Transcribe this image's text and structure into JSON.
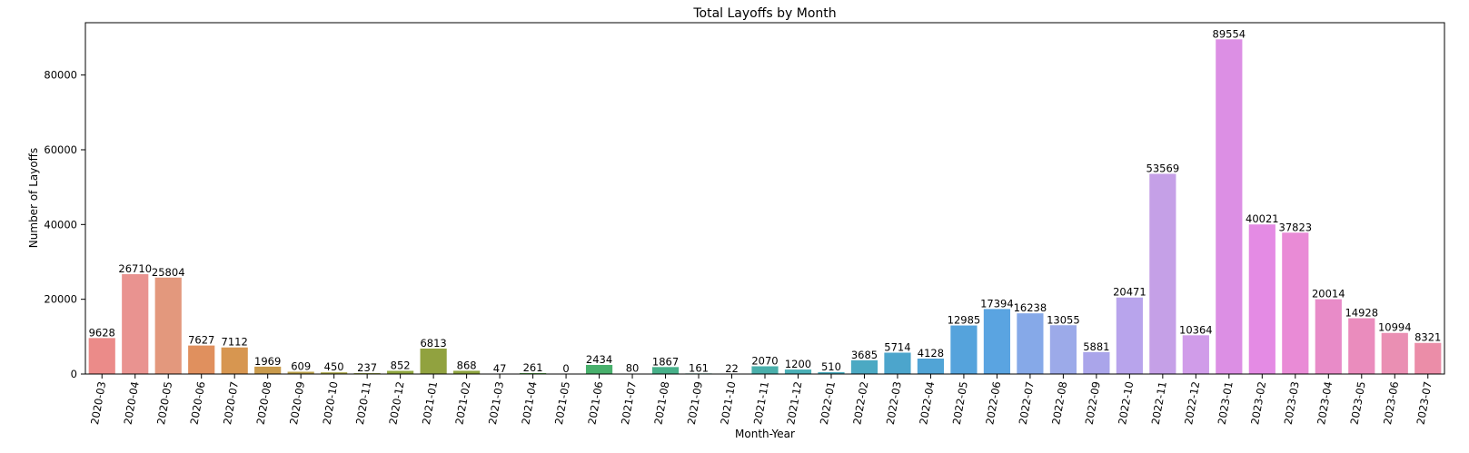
{
  "chart_data": {
    "type": "bar",
    "title": "Total Layoffs by Month",
    "xlabel": "Month-Year",
    "ylabel": "Number of Layoffs",
    "ylim": [
      0,
      94000
    ],
    "yticks": [
      0,
      20000,
      40000,
      60000,
      80000
    ],
    "grid": false,
    "legend": "none",
    "categories": [
      "2020-03",
      "2020-04",
      "2020-05",
      "2020-06",
      "2020-07",
      "2020-08",
      "2020-09",
      "2020-10",
      "2020-11",
      "2020-12",
      "2021-01",
      "2021-02",
      "2021-03",
      "2021-04",
      "2021-05",
      "2021-06",
      "2021-07",
      "2021-08",
      "2021-09",
      "2021-10",
      "2021-11",
      "2021-12",
      "2022-01",
      "2022-02",
      "2022-03",
      "2022-04",
      "2022-05",
      "2022-06",
      "2022-07",
      "2022-08",
      "2022-09",
      "2022-10",
      "2022-11",
      "2022-12",
      "2023-01",
      "2023-02",
      "2023-03",
      "2023-04",
      "2023-05",
      "2023-06",
      "2023-07"
    ],
    "values": [
      9628,
      26710,
      25804,
      7627,
      7112,
      1969,
      609,
      450,
      237,
      852,
      6813,
      868,
      47,
      261,
      0,
      2434,
      80,
      1867,
      161,
      22,
      2070,
      1200,
      510,
      3685,
      5714,
      4128,
      12985,
      17394,
      16238,
      13055,
      5881,
      20471,
      53569,
      10364,
      89554,
      40021,
      37823,
      20014,
      14928,
      10994,
      8321
    ],
    "colors": [
      "#eb8b89",
      "#e99390",
      "#e3987d",
      "#e0905e",
      "#d79650",
      "#c99a4c",
      "#b9a04a",
      "#a9a544",
      "#9aa540",
      "#8fa63f",
      "#91a23f",
      "#8ea43f",
      "#67ab44",
      "#57ae4c",
      "#4bb05c",
      "#48b06c",
      "#47b17a",
      "#47b089",
      "#49b096",
      "#4aafa1",
      "#4aafab",
      "#4ab0b7",
      "#4aabbe",
      "#4ba9c3",
      "#4ca5cc",
      "#51a4d6",
      "#55a3dc",
      "#5aa4e1",
      "#86a9e8",
      "#9caae9",
      "#aaa5ea",
      "#b8a4ec",
      "#c5a0e7",
      "#d09ce9",
      "#dc8fe4",
      "#e48be4",
      "#e98bd6",
      "#e88bc8",
      "#ea8cbd",
      "#ea8fb3",
      "#eb8da8"
    ]
  }
}
